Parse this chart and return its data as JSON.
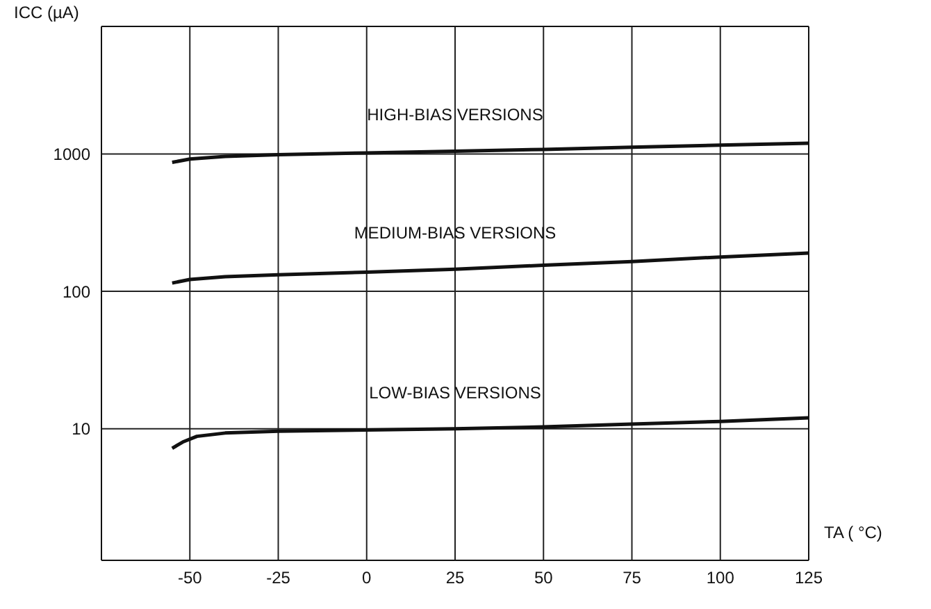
{
  "chart_data": {
    "type": "line",
    "xlabel": "TA ( °C)",
    "ylabel": "ICC (µA)",
    "series": [
      {
        "color": "#111111",
        "x": [
          -55,
          -50,
          -40,
          -25,
          0,
          25,
          50,
          75,
          100,
          125
        ],
        "values": [
          870,
          920,
          960,
          990,
          1020,
          1050,
          1080,
          1120,
          1160,
          1200
        ]
      },
      {
        "color": "#111111",
        "x": [
          -55,
          -50,
          -40,
          -25,
          0,
          25,
          50,
          75,
          100,
          125
        ],
        "values": [
          115,
          122,
          128,
          132,
          138,
          145,
          155,
          165,
          178,
          190
        ]
      },
      {
        "color": "#111111",
        "x": [
          -55,
          -52,
          -48,
          -40,
          -25,
          0,
          25,
          50,
          75,
          100,
          125
        ],
        "values": [
          7.2,
          8,
          8.8,
          9.3,
          9.6,
          9.8,
          10,
          10.3,
          10.8,
          11.3,
          12
        ]
      }
    ],
    "annotations": [
      "HIGH-BIAS VERSIONS",
      "MEDIUM-BIAS VERSIONS",
      "LOW-BIAS VERSIONS"
    ],
    "xlim": [
      -75,
      125
    ],
    "xticks": [
      -50,
      -25,
      0,
      25,
      50,
      75,
      100,
      125
    ],
    "ylim": [
      1.1,
      8500
    ],
    "yticks": [
      10,
      100,
      1000
    ],
    "log": "y",
    "grid": true,
    "marker": "none",
    "line_style": "solid",
    "legend": false
  }
}
